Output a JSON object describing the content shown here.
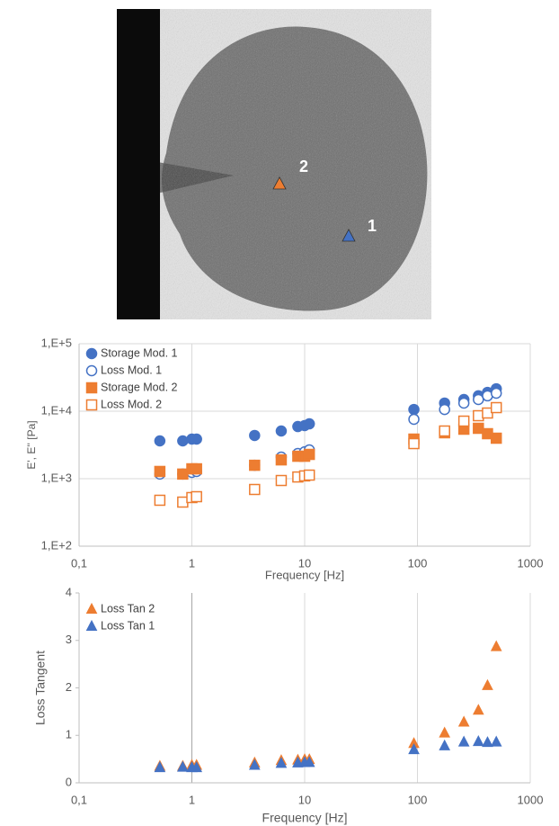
{
  "image": {
    "markers": [
      {
        "label": "2"
      },
      {
        "label": "1"
      }
    ]
  },
  "chart_data": [
    {
      "type": "scatter",
      "xlabel": "Frequency [Hz]",
      "ylabel": "E', E'' [Pa]",
      "xlog": true,
      "ylog": true,
      "grid": true,
      "legend": "top-left",
      "x": [
        0.52,
        0.83,
        1.0,
        1.1,
        3.6,
        6.2,
        8.7,
        10,
        11,
        93,
        174,
        258,
        347,
        418,
        500
      ],
      "xlim": [
        0.1,
        1000
      ],
      "xticks": [
        {
          "value": 0.1,
          "label": "0,1"
        },
        1,
        10,
        100,
        1000
      ],
      "ylim": [
        100,
        100000
      ],
      "yticks": [
        {
          "value": 100,
          "label": "1,E+2"
        },
        {
          "value": 1000,
          "label": "1,E+3"
        },
        {
          "value": 10000,
          "label": "1,E+4"
        },
        {
          "value": 100000,
          "label": "1,E+5"
        }
      ],
      "series": [
        {
          "name": "Storage Mod. 1",
          "color": "#4472c4",
          "marker": "circle",
          "filled": true,
          "values": [
            3630,
            3630,
            3860,
            3860,
            4370,
            5090,
            5930,
            6120,
            6500,
            10600,
            13200,
            14900,
            16900,
            19000,
            21500
          ]
        },
        {
          "name": "Loss Mod. 1",
          "color": "#4472c4",
          "marker": "circle",
          "filled": false,
          "values": [
            1170,
            1170,
            1240,
            1280,
            1580,
            2090,
            2360,
            2500,
            2670,
            7590,
            10600,
            13200,
            14900,
            16900,
            18500
          ]
        },
        {
          "name": "Storage Mod. 2",
          "color": "#ed7d31",
          "marker": "square",
          "filled": true,
          "values": [
            1280,
            1170,
            1400,
            1400,
            1580,
            1900,
            2150,
            2150,
            2290,
            3860,
            4790,
            5410,
            5580,
            4640,
            3980
          ]
        },
        {
          "name": "Loss Mod. 2",
          "color": "#ed7d31",
          "marker": "square",
          "filled": false,
          "values": [
            479,
            450,
            525,
            541,
            692,
            940,
            1060,
            1100,
            1130,
            3310,
            5090,
            7130,
            8570,
            9400,
            11300
          ]
        }
      ]
    },
    {
      "type": "scatter",
      "xlabel": "Frequency [Hz]",
      "ylabel": "Loss Tangent",
      "xlog": true,
      "ylog": false,
      "grid": true,
      "legend": "top-left",
      "x": [
        0.52,
        0.83,
        1.0,
        1.1,
        3.6,
        6.2,
        8.7,
        10,
        11,
        93,
        174,
        258,
        347,
        418,
        500
      ],
      "xlim": [
        0.1,
        1000
      ],
      "xticks": [
        {
          "value": 0.1,
          "label": "0,1"
        },
        1,
        10,
        100,
        1000
      ],
      "ylim": [
        0,
        4
      ],
      "yticks": [
        0,
        1,
        2,
        3,
        4
      ],
      "series": [
        {
          "name": "Loss Tan 2",
          "color": "#ed7d31",
          "marker": "triangle",
          "filled": true,
          "values": [
            0.35,
            0.35,
            0.37,
            0.37,
            0.42,
            0.47,
            0.48,
            0.49,
            0.49,
            0.83,
            1.05,
            1.28,
            1.53,
            2.05,
            2.87
          ]
        },
        {
          "name": "Loss Tan 1",
          "color": "#4472c4",
          "marker": "triangle",
          "filled": true,
          "values": [
            0.32,
            0.33,
            0.32,
            0.32,
            0.37,
            0.41,
            0.42,
            0.43,
            0.43,
            0.7,
            0.78,
            0.86,
            0.87,
            0.85,
            0.86
          ]
        }
      ]
    }
  ]
}
